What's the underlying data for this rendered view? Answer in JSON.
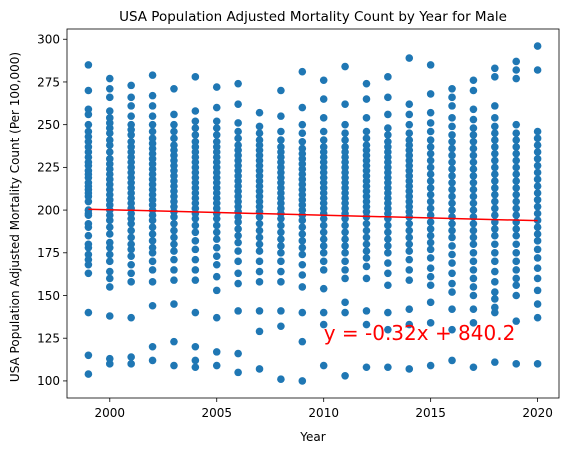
{
  "chart_data": {
    "type": "scatter",
    "title": "USA Population Adjusted Mortality Count by Year for Male",
    "xlabel": "Year",
    "ylabel": "USA Population Adjusted Mortality Count (Per 100,000)",
    "xlim": [
      1998.0,
      2021.0
    ],
    "ylim": [
      90,
      306
    ],
    "x_ticks": [
      2000,
      2005,
      2010,
      2015,
      2020
    ],
    "y_ticks": [
      100,
      125,
      150,
      175,
      200,
      225,
      250,
      275,
      300
    ],
    "grid": false,
    "point_color": "#1f77b4",
    "line_color": "#ff0000",
    "regression": {
      "slope": -0.32,
      "intercept": 840.2,
      "x_range": [
        1999,
        2020
      ]
    },
    "annotation": {
      "text": "y = -0.32x + 840.2",
      "x": 2010,
      "y": 124,
      "color": "#ff0000"
    },
    "points": {
      "years": [
        1999,
        2000,
        2001,
        2002,
        2003,
        2004,
        2005,
        2006,
        2007,
        2008,
        2009,
        2010,
        2011,
        2012,
        2013,
        2014,
        2015,
        2016,
        2017,
        2018,
        2019,
        2020
      ],
      "y_by_year": [
        [
          104,
          115,
          140,
          163,
          168,
          171,
          174,
          178,
          180,
          185,
          190,
          192,
          197,
          198,
          200,
          205,
          208,
          210,
          212,
          214,
          216,
          219,
          221,
          223,
          226,
          228,
          231,
          234,
          237,
          240,
          243,
          246,
          250,
          256,
          259,
          270,
          285
        ],
        [
          110,
          113,
          138,
          155,
          160,
          164,
          170,
          174,
          178,
          181,
          186,
          190,
          194,
          197,
          200,
          203,
          206,
          209,
          212,
          215,
          218,
          221,
          224,
          227,
          230,
          234,
          238,
          241,
          245,
          248,
          251,
          254,
          258,
          266,
          271,
          277
        ],
        [
          110,
          114,
          137,
          158,
          163,
          168,
          173,
          177,
          180,
          184,
          188,
          192,
          195,
          198,
          201,
          204,
          207,
          210,
          213,
          216,
          219,
          222,
          225,
          228,
          231,
          234,
          237,
          240,
          244,
          247,
          250,
          255,
          261,
          266,
          273
        ],
        [
          112,
          120,
          144,
          158,
          165,
          170,
          175,
          178,
          182,
          186,
          190,
          194,
          197,
          200,
          203,
          206,
          209,
          212,
          215,
          218,
          221,
          224,
          227,
          230,
          233,
          236,
          239,
          242,
          246,
          250,
          255,
          261,
          267,
          279
        ],
        [
          109,
          123,
          145,
          159,
          165,
          171,
          176,
          180,
          184,
          188,
          192,
          196,
          199,
          202,
          205,
          208,
          211,
          214,
          217,
          220,
          223,
          226,
          229,
          232,
          235,
          238,
          242,
          246,
          250,
          256,
          271
        ],
        [
          108,
          112,
          120,
          140,
          159,
          165,
          171,
          177,
          182,
          187,
          191,
          195,
          198,
          201,
          204,
          207,
          210,
          213,
          216,
          219,
          222,
          225,
          228,
          231,
          234,
          237,
          240,
          244,
          248,
          252,
          258,
          278
        ],
        [
          109,
          117,
          137,
          153,
          161,
          168,
          173,
          178,
          183,
          187,
          191,
          195,
          198,
          201,
          204,
          207,
          210,
          213,
          216,
          219,
          222,
          225,
          228,
          231,
          234,
          237,
          240,
          244,
          248,
          252,
          260,
          272
        ],
        [
          105,
          116,
          141,
          157,
          163,
          170,
          176,
          181,
          185,
          189,
          193,
          196,
          199,
          202,
          205,
          208,
          211,
          214,
          217,
          220,
          223,
          226,
          229,
          232,
          235,
          238,
          242,
          246,
          251,
          262,
          274
        ],
        [
          107,
          129,
          141,
          158,
          164,
          170,
          176,
          180,
          184,
          188,
          192,
          196,
          199,
          202,
          205,
          208,
          211,
          214,
          217,
          220,
          223,
          226,
          229,
          232,
          235,
          238,
          241,
          245,
          249,
          257
        ],
        [
          101,
          132,
          141,
          158,
          164,
          170,
          175,
          179,
          183,
          187,
          191,
          195,
          198,
          201,
          204,
          207,
          210,
          213,
          216,
          219,
          222,
          225,
          228,
          231,
          234,
          237,
          241,
          246,
          255,
          270
        ],
        [
          100,
          123,
          140,
          155,
          162,
          168,
          174,
          178,
          182,
          186,
          190,
          194,
          197,
          200,
          203,
          206,
          209,
          212,
          215,
          218,
          221,
          224,
          227,
          230,
          233,
          236,
          240,
          245,
          250,
          260,
          281
        ],
        [
          109,
          133,
          140,
          154,
          165,
          170,
          175,
          179,
          183,
          187,
          191,
          195,
          198,
          201,
          204,
          207,
          210,
          213,
          216,
          219,
          222,
          225,
          228,
          231,
          234,
          237,
          241,
          246,
          254,
          265,
          276
        ],
        [
          103,
          140,
          146,
          160,
          165,
          170,
          175,
          179,
          183,
          187,
          191,
          195,
          198,
          201,
          204,
          207,
          210,
          213,
          216,
          219,
          222,
          225,
          228,
          231,
          234,
          237,
          241,
          245,
          250,
          262,
          284
        ],
        [
          108,
          133,
          141,
          160,
          167,
          172,
          176,
          180,
          184,
          188,
          192,
          196,
          199,
          202,
          205,
          208,
          211,
          214,
          217,
          220,
          223,
          226,
          229,
          232,
          235,
          238,
          242,
          246,
          254,
          265,
          274
        ],
        [
          108,
          130,
          140,
          156,
          163,
          169,
          175,
          179,
          183,
          187,
          191,
          195,
          198,
          201,
          204,
          207,
          210,
          213,
          216,
          219,
          222,
          225,
          228,
          231,
          234,
          237,
          240,
          244,
          248,
          256,
          266,
          278
        ],
        [
          107,
          133,
          142,
          159,
          165,
          171,
          176,
          180,
          184,
          188,
          192,
          196,
          199,
          202,
          205,
          208,
          211,
          214,
          217,
          220,
          223,
          226,
          229,
          232,
          235,
          238,
          241,
          245,
          250,
          256,
          262,
          289
        ],
        [
          109,
          134,
          146,
          156,
          161,
          166,
          172,
          177,
          181,
          185,
          189,
          193,
          197,
          201,
          205,
          209,
          213,
          217,
          221,
          225,
          229,
          233,
          237,
          241,
          246,
          251,
          257,
          268,
          285
        ],
        [
          112,
          130,
          142,
          152,
          157,
          163,
          169,
          174,
          179,
          184,
          188,
          192,
          196,
          200,
          204,
          208,
          212,
          216,
          220,
          224,
          228,
          232,
          236,
          240,
          244,
          249,
          254,
          261,
          266,
          271
        ],
        [
          108,
          134,
          142,
          150,
          155,
          160,
          165,
          170,
          175,
          180,
          184,
          188,
          192,
          196,
          200,
          204,
          208,
          212,
          216,
          220,
          224,
          228,
          232,
          236,
          240,
          244,
          248,
          253,
          259,
          270,
          276
        ],
        [
          111,
          140,
          143,
          148,
          152,
          158,
          164,
          170,
          175,
          180,
          185,
          189,
          193,
          197,
          201,
          205,
          209,
          213,
          217,
          221,
          225,
          229,
          233,
          237,
          241,
          245,
          249,
          254,
          261,
          278,
          283
        ],
        [
          110,
          135,
          150,
          156,
          160,
          165,
          170,
          175,
          180,
          185,
          189,
          193,
          197,
          201,
          205,
          209,
          213,
          217,
          221,
          225,
          229,
          233,
          237,
          241,
          245,
          250,
          277,
          282,
          287
        ],
        [
          110,
          137,
          145,
          153,
          160,
          166,
          172,
          177,
          182,
          186,
          190,
          194,
          198,
          202,
          206,
          210,
          214,
          218,
          222,
          226,
          230,
          234,
          238,
          242,
          246,
          282,
          296
        ]
      ]
    }
  }
}
